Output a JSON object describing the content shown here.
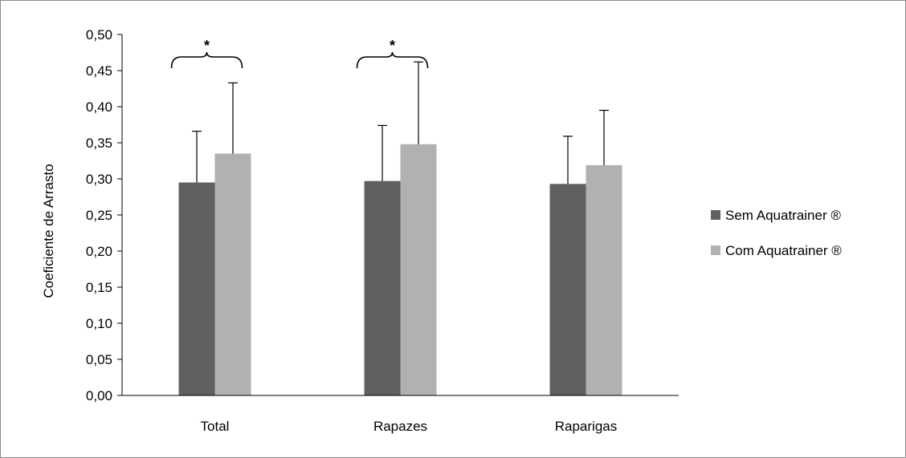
{
  "chart_data": {
    "type": "bar",
    "ylabel": "Coeficiente de Arrasto",
    "ylim": [
      0,
      0.5
    ],
    "y_tick_step": 0.05,
    "y_tick_labels": [
      "0,00",
      "0,05",
      "0,10",
      "0,15",
      "0,20",
      "0,25",
      "0,30",
      "0,35",
      "0,40",
      "0,45",
      "0,50"
    ],
    "categories": [
      "Total",
      "Rapazes",
      "Raparigas"
    ],
    "series": [
      {
        "name": "Sem Aquatrainer ®",
        "color": "#606060",
        "values": [
          0.295,
          0.297,
          0.293
        ],
        "error_upper": [
          0.071,
          0.077,
          0.066
        ]
      },
      {
        "name": "Com Aquatrainer ®",
        "color": "#b1b1b1",
        "values": [
          0.335,
          0.348,
          0.319
        ],
        "error_upper": [
          0.098,
          0.114,
          0.076
        ]
      }
    ],
    "significance": [
      {
        "category": "Total",
        "label": "*"
      },
      {
        "category": "Rapazes",
        "label": "*"
      }
    ],
    "grid": false,
    "legend_position": "right"
  }
}
